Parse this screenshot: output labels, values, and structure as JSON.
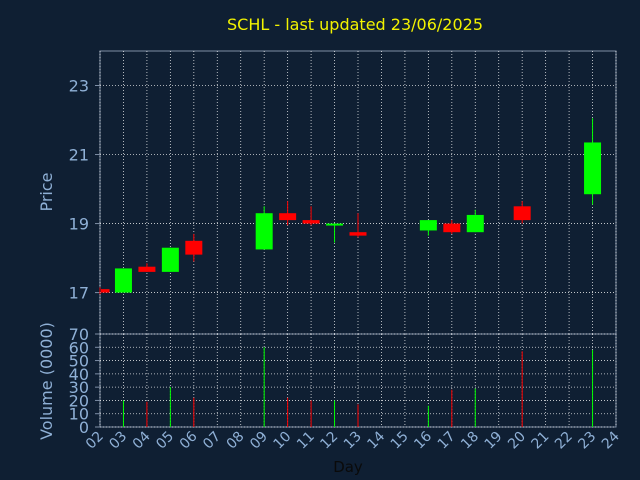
{
  "chart_data": {
    "type": "candlestick",
    "title": "SCHL - last updated 23/06/2025",
    "xlabel": "Day",
    "price_axis": {
      "label": "Price",
      "ylim": [
        15.8,
        24.0
      ],
      "ticks": [
        17,
        19,
        21,
        23
      ]
    },
    "volume_axis": {
      "label": "Volume (0000)",
      "ylim": [
        0,
        70
      ],
      "ticks": [
        0,
        10,
        20,
        30,
        40,
        50,
        60,
        70
      ]
    },
    "x_ticks": [
      "02",
      "03",
      "04",
      "05",
      "06",
      "07",
      "08",
      "09",
      "10",
      "11",
      "12",
      "13",
      "14",
      "15",
      "16",
      "17",
      "18",
      "19",
      "20",
      "21",
      "22",
      "23",
      "24"
    ],
    "xlim": [
      2,
      24
    ],
    "grid": true,
    "colors": {
      "up": "#00ff00",
      "down": "#ff0000",
      "background": "#0f1f33",
      "axis_text": "#8fb0d6",
      "title": "#f2f200",
      "grid": "#ffffff",
      "frame": "#7f8fa6"
    },
    "candles": [
      {
        "day": 2.0,
        "open": 17.1,
        "close": 17.0,
        "high": 17.15,
        "low": 16.95,
        "volume": 0
      },
      {
        "day": 3.0,
        "open": 17.0,
        "close": 17.7,
        "high": 17.7,
        "low": 17.0,
        "volume": 20
      },
      {
        "day": 4.0,
        "open": 17.75,
        "close": 17.6,
        "high": 17.85,
        "low": 17.6,
        "volume": 19
      },
      {
        "day": 5.0,
        "open": 17.6,
        "close": 18.3,
        "high": 18.3,
        "low": 17.6,
        "volume": 30
      },
      {
        "day": 6.0,
        "open": 18.5,
        "close": 18.1,
        "high": 18.7,
        "low": 17.9,
        "volume": 22
      },
      {
        "day": 9.0,
        "open": 18.25,
        "close": 19.3,
        "high": 19.5,
        "low": 18.25,
        "volume": 60
      },
      {
        "day": 10.0,
        "open": 19.3,
        "close": 19.1,
        "high": 19.65,
        "low": 18.95,
        "volume": 22
      },
      {
        "day": 11.0,
        "open": 19.1,
        "close": 19.0,
        "high": 19.5,
        "low": 18.95,
        "volume": 20
      },
      {
        "day": 12.0,
        "open": 18.95,
        "close": 19.0,
        "high": 19.0,
        "low": 18.45,
        "volume": 20
      },
      {
        "day": 13.0,
        "open": 18.75,
        "close": 18.65,
        "high": 19.3,
        "low": 18.6,
        "volume": 17
      },
      {
        "day": 16.0,
        "open": 18.8,
        "close": 19.1,
        "high": 19.1,
        "low": 18.65,
        "volume": 16
      },
      {
        "day": 17.0,
        "open": 19.0,
        "close": 18.75,
        "high": 19.1,
        "low": 18.7,
        "volume": 28
      },
      {
        "day": 18.0,
        "open": 18.75,
        "close": 19.25,
        "high": 19.4,
        "low": 18.75,
        "volume": 29
      },
      {
        "day": 20.0,
        "open": 19.5,
        "close": 19.1,
        "high": 19.65,
        "low": 19.0,
        "volume": 57
      },
      {
        "day": 23.0,
        "open": 19.85,
        "close": 21.35,
        "high": 22.05,
        "low": 19.55,
        "volume": 58
      }
    ]
  }
}
